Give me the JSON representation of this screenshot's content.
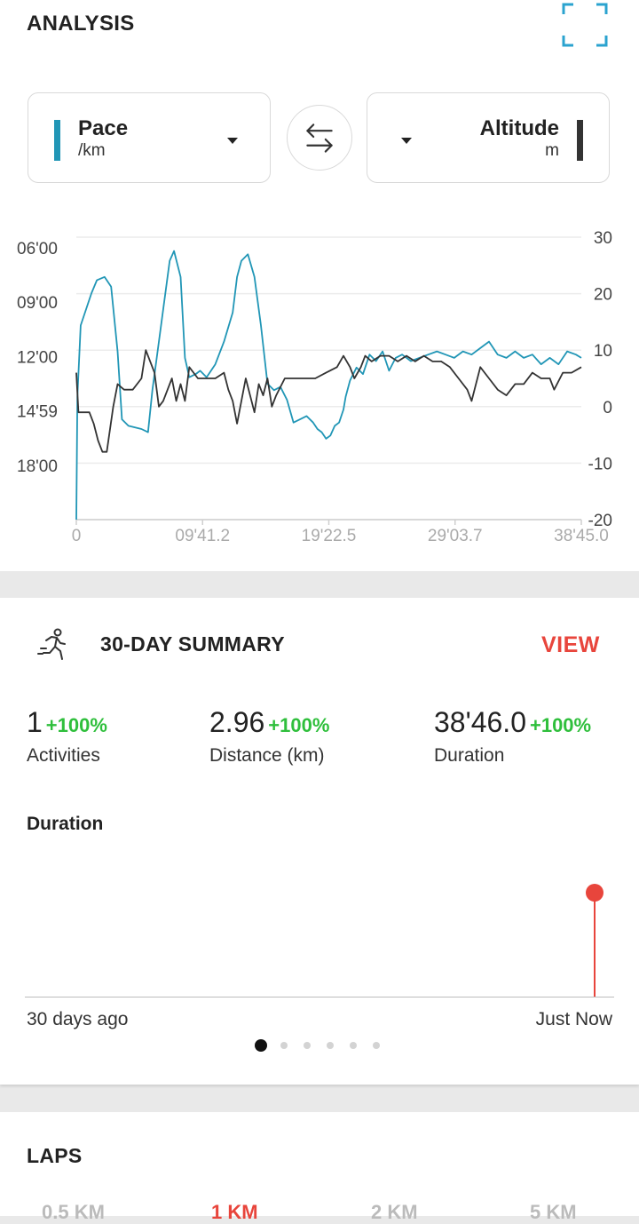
{
  "analysis": {
    "title": "ANALYSIS",
    "left_metric": {
      "name": "Pace",
      "unit": "/km",
      "color": "#2196b6"
    },
    "right_metric": {
      "name": "Altitude",
      "unit": "m",
      "color": "#333333"
    },
    "expand_icon": "fullscreen-icon",
    "swap_icon": "swap-arrows-icon"
  },
  "chart_data": {
    "type": "line",
    "x_ticks": [
      "0",
      "09'41.2",
      "19'22.5",
      "29'03.7",
      "38'45.0"
    ],
    "x_range_seconds": [
      0,
      2325
    ],
    "y_left_ticks": [
      "06'00",
      "09'00",
      "12'00",
      "14'59",
      "18'00"
    ],
    "y_left_label": "Pace /km",
    "y_left_range_seconds_per_km": [
      360,
      1200
    ],
    "y_left_inverted": true,
    "y_right_ticks": [
      "30",
      "20",
      "10",
      "0",
      "-10",
      "-20"
    ],
    "y_right_label": "Altitude m",
    "y_right_range": [
      -20,
      30
    ],
    "grid": true,
    "series": [
      {
        "name": "Pace",
        "color": "#2196b6",
        "points": [
          [
            0,
            1200
          ],
          [
            5,
            820
          ],
          [
            20,
            600
          ],
          [
            50,
            540
          ],
          [
            70,
            500
          ],
          [
            95,
            460
          ],
          [
            130,
            450
          ],
          [
            160,
            480
          ],
          [
            190,
            680
          ],
          [
            210,
            890
          ],
          [
            240,
            910
          ],
          [
            300,
            920
          ],
          [
            330,
            930
          ],
          [
            350,
            800
          ],
          [
            370,
            700
          ],
          [
            400,
            550
          ],
          [
            430,
            400
          ],
          [
            450,
            370
          ],
          [
            480,
            450
          ],
          [
            500,
            700
          ],
          [
            520,
            760
          ],
          [
            550,
            750
          ],
          [
            570,
            740
          ],
          [
            600,
            760
          ],
          [
            640,
            720
          ],
          [
            680,
            650
          ],
          [
            720,
            560
          ],
          [
            740,
            450
          ],
          [
            760,
            400
          ],
          [
            790,
            380
          ],
          [
            820,
            450
          ],
          [
            850,
            600
          ],
          [
            880,
            780
          ],
          [
            910,
            800
          ],
          [
            940,
            790
          ],
          [
            970,
            830
          ],
          [
            1000,
            900
          ],
          [
            1030,
            890
          ],
          [
            1060,
            880
          ],
          [
            1090,
            900
          ],
          [
            1110,
            920
          ],
          [
            1130,
            930
          ],
          [
            1150,
            950
          ],
          [
            1170,
            940
          ],
          [
            1190,
            910
          ],
          [
            1210,
            900
          ],
          [
            1230,
            860
          ],
          [
            1240,
            820
          ],
          [
            1260,
            770
          ],
          [
            1290,
            730
          ],
          [
            1320,
            750
          ],
          [
            1350,
            690
          ],
          [
            1380,
            710
          ],
          [
            1410,
            680
          ],
          [
            1440,
            740
          ],
          [
            1470,
            700
          ],
          [
            1500,
            690
          ],
          [
            1540,
            710
          ],
          [
            1580,
            700
          ],
          [
            1620,
            690
          ],
          [
            1660,
            680
          ],
          [
            1700,
            690
          ],
          [
            1740,
            700
          ],
          [
            1780,
            680
          ],
          [
            1820,
            690
          ],
          [
            1860,
            670
          ],
          [
            1900,
            650
          ],
          [
            1940,
            690
          ],
          [
            1980,
            700
          ],
          [
            2020,
            680
          ],
          [
            2060,
            700
          ],
          [
            2100,
            690
          ],
          [
            2140,
            720
          ],
          [
            2180,
            700
          ],
          [
            2220,
            720
          ],
          [
            2260,
            680
          ],
          [
            2300,
            690
          ],
          [
            2325,
            700
          ]
        ]
      },
      {
        "name": "Altitude",
        "color": "#333333",
        "points": [
          [
            0,
            6
          ],
          [
            10,
            -1
          ],
          [
            30,
            -1
          ],
          [
            60,
            -1
          ],
          [
            80,
            -3
          ],
          [
            100,
            -6
          ],
          [
            120,
            -8
          ],
          [
            140,
            -8
          ],
          [
            170,
            0
          ],
          [
            190,
            4
          ],
          [
            220,
            3
          ],
          [
            260,
            3
          ],
          [
            300,
            5
          ],
          [
            320,
            10
          ],
          [
            340,
            8
          ],
          [
            360,
            6
          ],
          [
            380,
            0
          ],
          [
            400,
            1
          ],
          [
            420,
            3
          ],
          [
            440,
            5
          ],
          [
            460,
            1
          ],
          [
            480,
            4
          ],
          [
            500,
            1
          ],
          [
            520,
            7
          ],
          [
            560,
            5
          ],
          [
            600,
            5
          ],
          [
            640,
            5
          ],
          [
            680,
            6
          ],
          [
            700,
            3
          ],
          [
            720,
            1
          ],
          [
            740,
            -3
          ],
          [
            760,
            1
          ],
          [
            780,
            5
          ],
          [
            800,
            2
          ],
          [
            820,
            -1
          ],
          [
            840,
            4
          ],
          [
            860,
            2
          ],
          [
            880,
            5
          ],
          [
            900,
            0
          ],
          [
            920,
            2
          ],
          [
            960,
            5
          ],
          [
            1000,
            5
          ],
          [
            1050,
            5
          ],
          [
            1100,
            5
          ],
          [
            1150,
            6
          ],
          [
            1200,
            7
          ],
          [
            1230,
            9
          ],
          [
            1260,
            7
          ],
          [
            1280,
            5
          ],
          [
            1310,
            7
          ],
          [
            1330,
            9
          ],
          [
            1360,
            8
          ],
          [
            1400,
            9
          ],
          [
            1440,
            9
          ],
          [
            1480,
            8
          ],
          [
            1520,
            9
          ],
          [
            1560,
            8
          ],
          [
            1600,
            9
          ],
          [
            1640,
            8
          ],
          [
            1680,
            8
          ],
          [
            1720,
            7
          ],
          [
            1760,
            5
          ],
          [
            1800,
            3
          ],
          [
            1820,
            1
          ],
          [
            1860,
            7
          ],
          [
            1900,
            5
          ],
          [
            1940,
            3
          ],
          [
            1980,
            2
          ],
          [
            2020,
            4
          ],
          [
            2060,
            4
          ],
          [
            2100,
            6
          ],
          [
            2140,
            5
          ],
          [
            2180,
            5
          ],
          [
            2200,
            3
          ],
          [
            2240,
            6
          ],
          [
            2280,
            6
          ],
          [
            2325,
            7
          ]
        ]
      }
    ]
  },
  "summary": {
    "icon": "running-person-icon",
    "title": "30-DAY SUMMARY",
    "view_label": "VIEW",
    "stats": [
      {
        "value": "1",
        "change": "+100%",
        "label": "Activities"
      },
      {
        "value": "2.96",
        "change": "+100%",
        "label": "Distance (km)"
      },
      {
        "value": "38'46.0",
        "change": "+100%",
        "label": "Duration"
      }
    ],
    "duration_title": "Duration",
    "range_start": "30 days ago",
    "range_end": "Just Now",
    "active_page": 1,
    "page_count": 6,
    "accent_color": "#e8453c",
    "positive_color": "#2fbf3c"
  },
  "laps": {
    "title": "LAPS",
    "tabs": [
      "0.5 KM",
      "1 KM",
      "2 KM",
      "5 KM"
    ],
    "active_tab": "1 KM"
  }
}
